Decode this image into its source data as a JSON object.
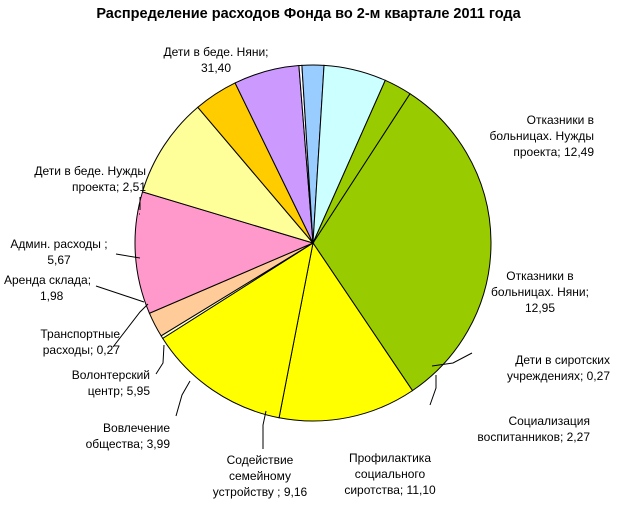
{
  "chart_data": {
    "type": "pie",
    "title": "Распределение расходов Фонда во 2-м квартале 2011 года",
    "slices": [
      {
        "label": "Дети в беде. Няни",
        "value": 31.4,
        "text": "Дети в беде. Няни;",
        "value_text": "31,40",
        "color": "#99cc00"
      },
      {
        "label": "Отказники в больницах. Нужды проекта",
        "value": 12.49,
        "text1": "Отказники в",
        "text2": "больницах. Нужды",
        "text3": "проекта; 12,49",
        "color": "#ffff00"
      },
      {
        "label": "Отказники в больницах. Няни",
        "value": 12.95,
        "text1": "Отказники в",
        "text2": "больницах. Няни;",
        "text3": "12,95",
        "color": "#ffff00"
      },
      {
        "label": "Дети в сиротских учреждениях",
        "value": 0.27,
        "text1": "Дети в сиротских",
        "text2": "учреждениях; 0,27",
        "color": "#ffffcc"
      },
      {
        "label": "Социализация воспитанников",
        "value": 2.27,
        "text1": "Социализация",
        "text2": "воспитанников; 2,27",
        "color": "#ffcc99"
      },
      {
        "label": "Профилактика социального сиротства",
        "value": 11.1,
        "text1": "Профилактика",
        "text2": "социального",
        "text3": "сиротства; 11,10",
        "color": "#ff99cc"
      },
      {
        "label": "Содействие семейному устройству",
        "value": 9.16,
        "text1": "Содействие",
        "text2": "семейному",
        "text3": "устройству ; 9,16",
        "color": "#ffff99"
      },
      {
        "label": "Вовлечение общества",
        "value": 3.99,
        "text1": "Вовлечение",
        "text2": "общества; 3,99",
        "color": "#ffcc00"
      },
      {
        "label": "Волонтерский центр",
        "value": 5.95,
        "text1": "Волонтерский",
        "text2": "центр; 5,95",
        "color": "#cc99ff"
      },
      {
        "label": "Транспортные расходы",
        "value": 0.27,
        "text1": "Транспортные",
        "text2": "расходы; 0,27",
        "color": "#ffffff"
      },
      {
        "label": "Аренда склада",
        "value": 1.98,
        "text1": "Аренда склада;",
        "text2": "1,98",
        "color": "#99ccff"
      },
      {
        "label": "Админ. расходы",
        "value": 5.67,
        "text1": "Админ. расходы ;",
        "text2": "5,67",
        "color": "#ccffff"
      },
      {
        "label": "Дети в беде. Нужды проекта",
        "value": 2.51,
        "text1": "Дети в беде. Нужды",
        "text2": "проекта; 2,51",
        "color": "#99cc00"
      }
    ]
  }
}
